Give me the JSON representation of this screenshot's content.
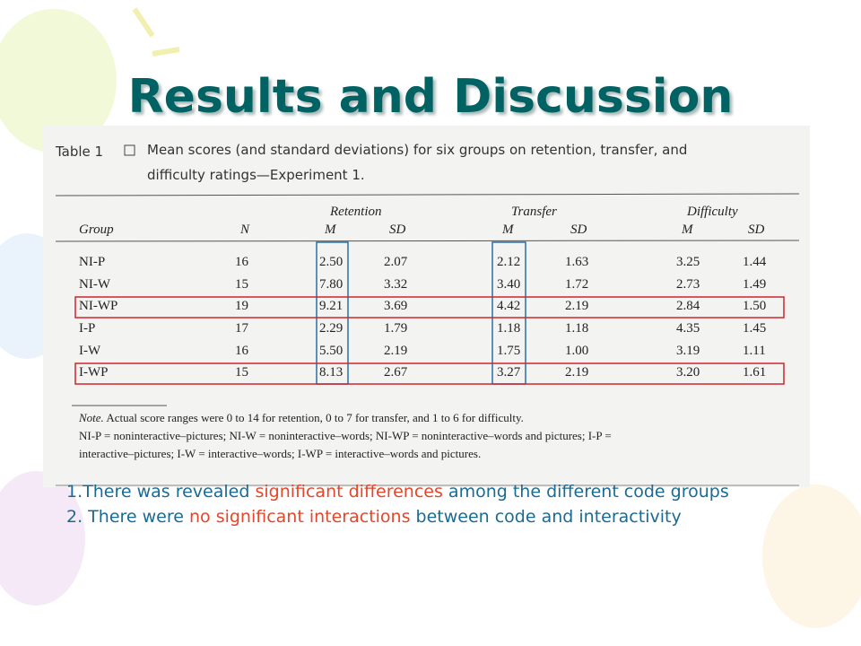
{
  "title": "Results and Discussion",
  "table": {
    "label": "Table 1",
    "caption_lines": [
      "Mean scores (and standard deviations) for six groups on retention, transfer, and",
      "difficulty ratings—Experiment 1."
    ],
    "groups": [
      "Retention",
      "Transfer",
      "Difficulty"
    ],
    "headers": [
      "Group",
      "N",
      "M",
      "SD",
      "M",
      "SD",
      "M",
      "SD"
    ],
    "rows": [
      [
        "NI-P",
        "16",
        "2.50",
        "2.07",
        "2.12",
        "1.63",
        "3.25",
        "1.44"
      ],
      [
        "NI-W",
        "15",
        "7.80",
        "3.32",
        "3.40",
        "1.72",
        "2.73",
        "1.49"
      ],
      [
        "NI-WP",
        "19",
        "9.21",
        "3.69",
        "4.42",
        "2.19",
        "2.84",
        "1.50"
      ],
      [
        "I-P",
        "17",
        "2.29",
        "1.79",
        "1.18",
        "1.18",
        "4.35",
        "1.45"
      ],
      [
        "I-W",
        "16",
        "5.50",
        "2.19",
        "1.75",
        "1.00",
        "3.19",
        "1.11"
      ],
      [
        "I-WP",
        "15",
        "8.13",
        "2.67",
        "3.27",
        "2.19",
        "3.20",
        "1.61"
      ]
    ],
    "note_label": "Note.",
    "note_lines": [
      " Actual score ranges were 0 to 14 for retention, 0 to 7 for transfer, and 1 to 6 for difficulty.",
      "NI-P = noninteractive–pictures; NI-W = noninteractive–words; NI-WP = noninteractive–words and pictures; I-P =",
      "interactive–pictures; I-W = interactive–words; I-WP = interactive–words and pictures."
    ]
  },
  "bullets": [
    [
      "1.There was revealed ",
      "significant differences",
      " among the different code groups"
    ],
    [
      "2. There were ",
      "no significant interactions",
      " between code and interactivity"
    ]
  ]
}
